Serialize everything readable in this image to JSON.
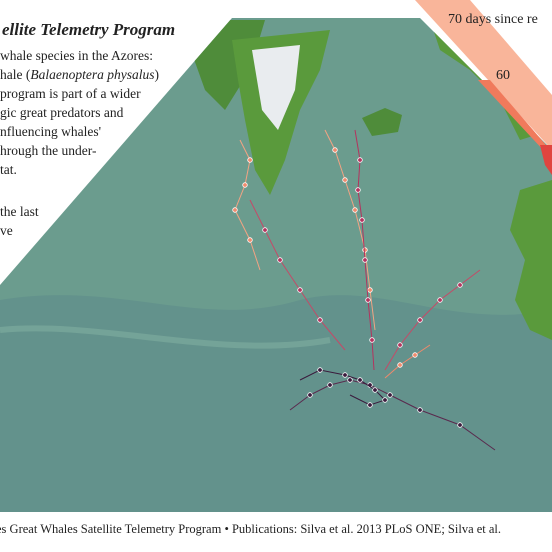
{
  "header": {
    "title": "ellite Telemetry Program"
  },
  "intro": {
    "lines": [
      [
        "whale species in the Azores:"
      ],
      [
        "hale (",
        "Balaenoptera physalus",
        ")"
      ],
      [
        "program is part of a wider"
      ],
      [
        "gic great predators and"
      ],
      [
        "nfluencing whales'"
      ],
      [
        "hrough the under-"
      ],
      [
        "tat."
      ],
      [
        "the last"
      ],
      [
        "ve"
      ]
    ]
  },
  "legend": {
    "title": "70 days since re",
    "tick": "60"
  },
  "footer": {
    "text": "es Great Whales Satellite Telemetry Program  •  Publications: Silva et al. 2013 PLoS ONE; Silva et al."
  }
}
